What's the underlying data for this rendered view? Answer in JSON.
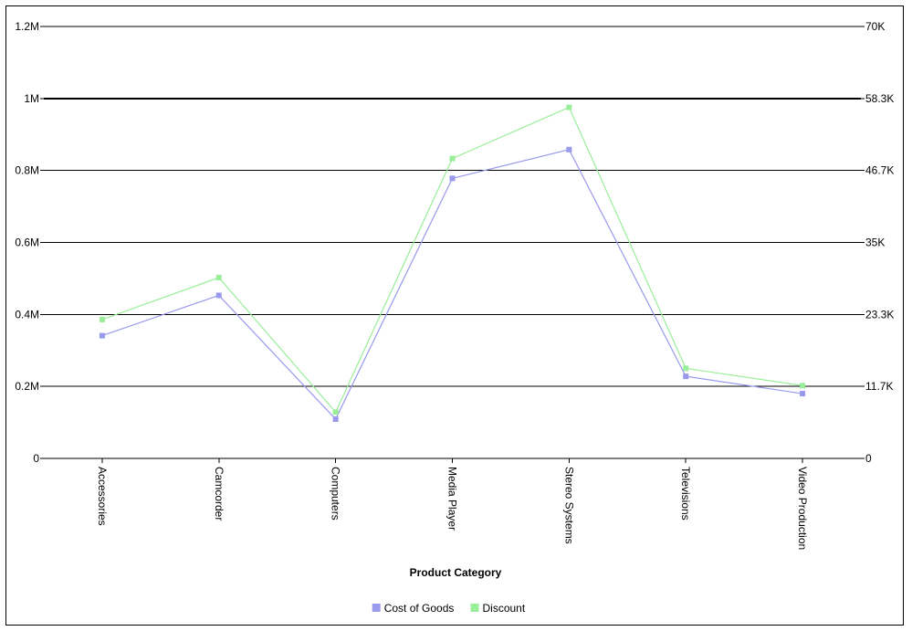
{
  "chart_data": {
    "type": "line",
    "xlabel": "Product Category",
    "categories": [
      "Accessories",
      "Camcorder",
      "Computers",
      "Media Player",
      "Stereo Systems",
      "Televisions",
      "Video Production"
    ],
    "y_left": {
      "ticks": [
        "0",
        "0.2M",
        "0.4M",
        "0.6M",
        "0.8M",
        "1M",
        "1.2M"
      ],
      "range": [
        0,
        1200000
      ]
    },
    "y_right": {
      "ticks": [
        "0",
        "11.7K",
        "23.3K",
        "35K",
        "46.7K",
        "58.3K",
        "70K"
      ],
      "range": [
        0,
        70000
      ]
    },
    "series": [
      {
        "name": "Cost of Goods",
        "axis": "left",
        "color": "#9999ee",
        "values": [
          341000,
          453000,
          109000,
          778000,
          858000,
          228000,
          180000
        ]
      },
      {
        "name": "Discount",
        "axis": "right",
        "color": "#99ee99",
        "values": [
          22500,
          29300,
          7500,
          48600,
          56900,
          14600,
          11800
        ]
      }
    ],
    "grid": true,
    "legend": "bottom-center"
  }
}
